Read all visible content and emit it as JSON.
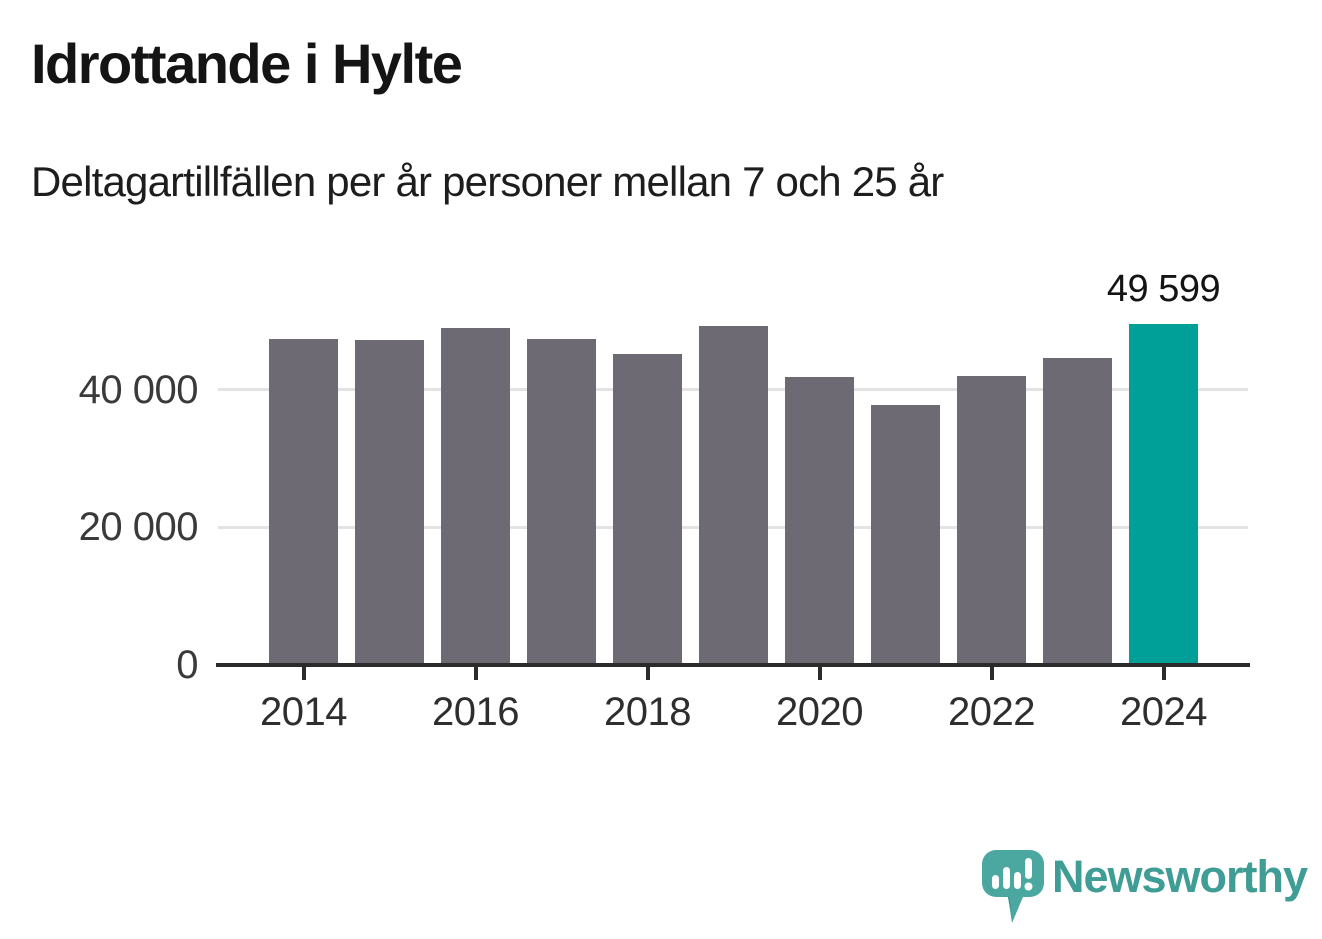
{
  "header": {
    "title": "Idrottande i Hylte",
    "subtitle": "Deltagartillfällen per år personer mellan 7 och 25 år"
  },
  "chart_data": {
    "type": "bar",
    "title": "Idrottande i Hylte",
    "subtitle": "Deltagartillfällen per år personer mellan 7 och 25 år",
    "xlabel": "",
    "ylabel": "",
    "categories": [
      2014,
      2015,
      2016,
      2017,
      2018,
      2019,
      2020,
      2021,
      2022,
      2023,
      2024
    ],
    "values": [
      47300,
      47200,
      49000,
      47400,
      45100,
      49300,
      41800,
      37700,
      42000,
      44600,
      49599
    ],
    "highlight_index": 10,
    "highlight_value_label": "49 599",
    "x_tick_years": [
      2014,
      2016,
      2018,
      2020,
      2022,
      2024
    ],
    "x_tick_labels": [
      "2014",
      "2016",
      "2018",
      "2020",
      "2022",
      "2024"
    ],
    "y_ticks": [
      0,
      20000,
      40000
    ],
    "y_tick_labels": [
      "0",
      "20 000",
      "40 000"
    ],
    "ylim": [
      0,
      52000
    ],
    "grid": true,
    "legend": "none",
    "bar_color": "#6d6a73",
    "highlight_color": "#00a099",
    "axis_color": "#2b2b2b",
    "gridline_color": "#e3e3e3"
  },
  "footer": {
    "brand": "Newsworthy",
    "brand_color": "#3f9d96",
    "logo_icon": "speech-bubble-bar-chart-icon",
    "logo_bubble_color": "#4aa8a1",
    "logo_shadow_color": "#2f837d"
  }
}
